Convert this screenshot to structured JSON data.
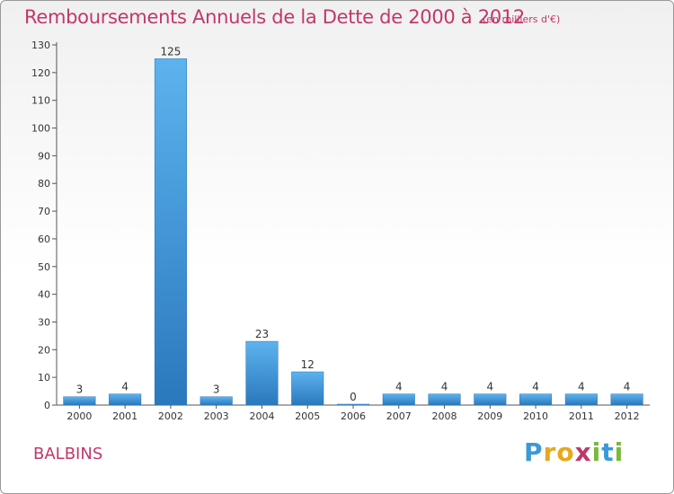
{
  "title": "Remboursements Annuels de la Dette de 2000 à 2012",
  "subtitle": "(en milliers d'€)",
  "commune": "BALBINS",
  "logo": {
    "letters": [
      "P",
      "r",
      "o",
      "x",
      "i",
      "t",
      "i"
    ],
    "colors": [
      "#3a9ad9",
      "#e8a81e",
      "#e8a81e",
      "#c0386b",
      "#7ab83a",
      "#3a9ad9",
      "#7ab83a"
    ]
  },
  "chart_data": {
    "type": "bar",
    "title": "Remboursements Annuels de la Dette de 2000 à 2012",
    "xlabel": "",
    "ylabel": "",
    "categories": [
      "2000",
      "2001",
      "2002",
      "2003",
      "2004",
      "2005",
      "2006",
      "2007",
      "2008",
      "2009",
      "2010",
      "2011",
      "2012"
    ],
    "values": [
      3,
      4,
      125,
      3,
      23,
      12,
      0,
      4,
      4,
      4,
      4,
      4,
      4
    ],
    "ylim": [
      0,
      130
    ],
    "yticks": [
      0,
      10,
      20,
      30,
      40,
      50,
      60,
      70,
      80,
      90,
      100,
      110,
      120,
      130
    ],
    "grid": false,
    "bar_color": "#3a8fd6"
  }
}
